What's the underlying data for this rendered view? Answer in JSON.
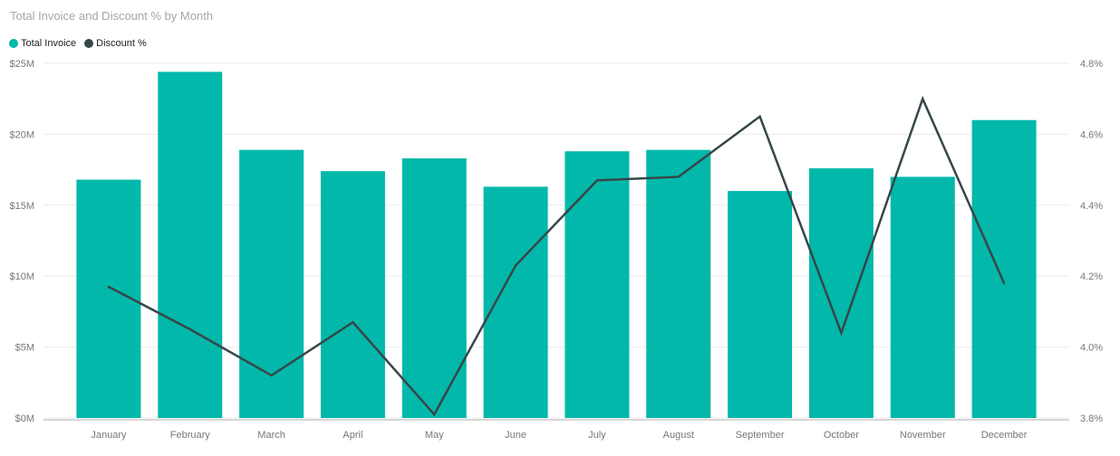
{
  "header": {
    "title": "Total Invoice and Discount % by Month",
    "title_color": "#a6a6a6"
  },
  "legend": {
    "items": [
      {
        "label": "Total Invoice",
        "color": "#01b8aa"
      },
      {
        "label": "Discount %",
        "color": "#374649"
      }
    ]
  },
  "chart_data": {
    "type": "bar",
    "subtype": "combo-bar-line-dual-axis",
    "title": "Total Invoice and Discount % by Month",
    "categories": [
      "January",
      "February",
      "March",
      "April",
      "May",
      "June",
      "July",
      "August",
      "September",
      "October",
      "November",
      "December"
    ],
    "series": [
      {
        "name": "Total Invoice",
        "kind": "bar",
        "axis": "left",
        "color": "#01b8aa",
        "unit": "$M",
        "values": [
          16.8,
          24.4,
          18.9,
          17.4,
          18.3,
          16.3,
          18.8,
          18.9,
          16.0,
          17.6,
          17.0,
          21.0
        ]
      },
      {
        "name": "Discount %",
        "kind": "line",
        "axis": "right",
        "color": "#374649",
        "unit": "%",
        "values": [
          4.17,
          4.05,
          3.92,
          4.07,
          3.81,
          4.23,
          4.47,
          4.48,
          4.65,
          4.04,
          4.7,
          4.18
        ]
      }
    ],
    "left_axis": {
      "min": 0,
      "max": 25,
      "tick_step": 5,
      "tick_labels": [
        "$0M",
        "$5M",
        "$10M",
        "$15M",
        "$20M",
        "$25M"
      ]
    },
    "right_axis": {
      "min": 3.8,
      "max": 4.8,
      "tick_step": 0.2,
      "tick_labels": [
        "3.8%",
        "4.0%",
        "4.2%",
        "4.4%",
        "4.6%",
        "4.8%"
      ]
    },
    "grid": {
      "on": true,
      "color": "#ececec",
      "baseline_color": "#d6d6d6"
    },
    "text_color": "#777777",
    "legend_position": "top-left"
  }
}
